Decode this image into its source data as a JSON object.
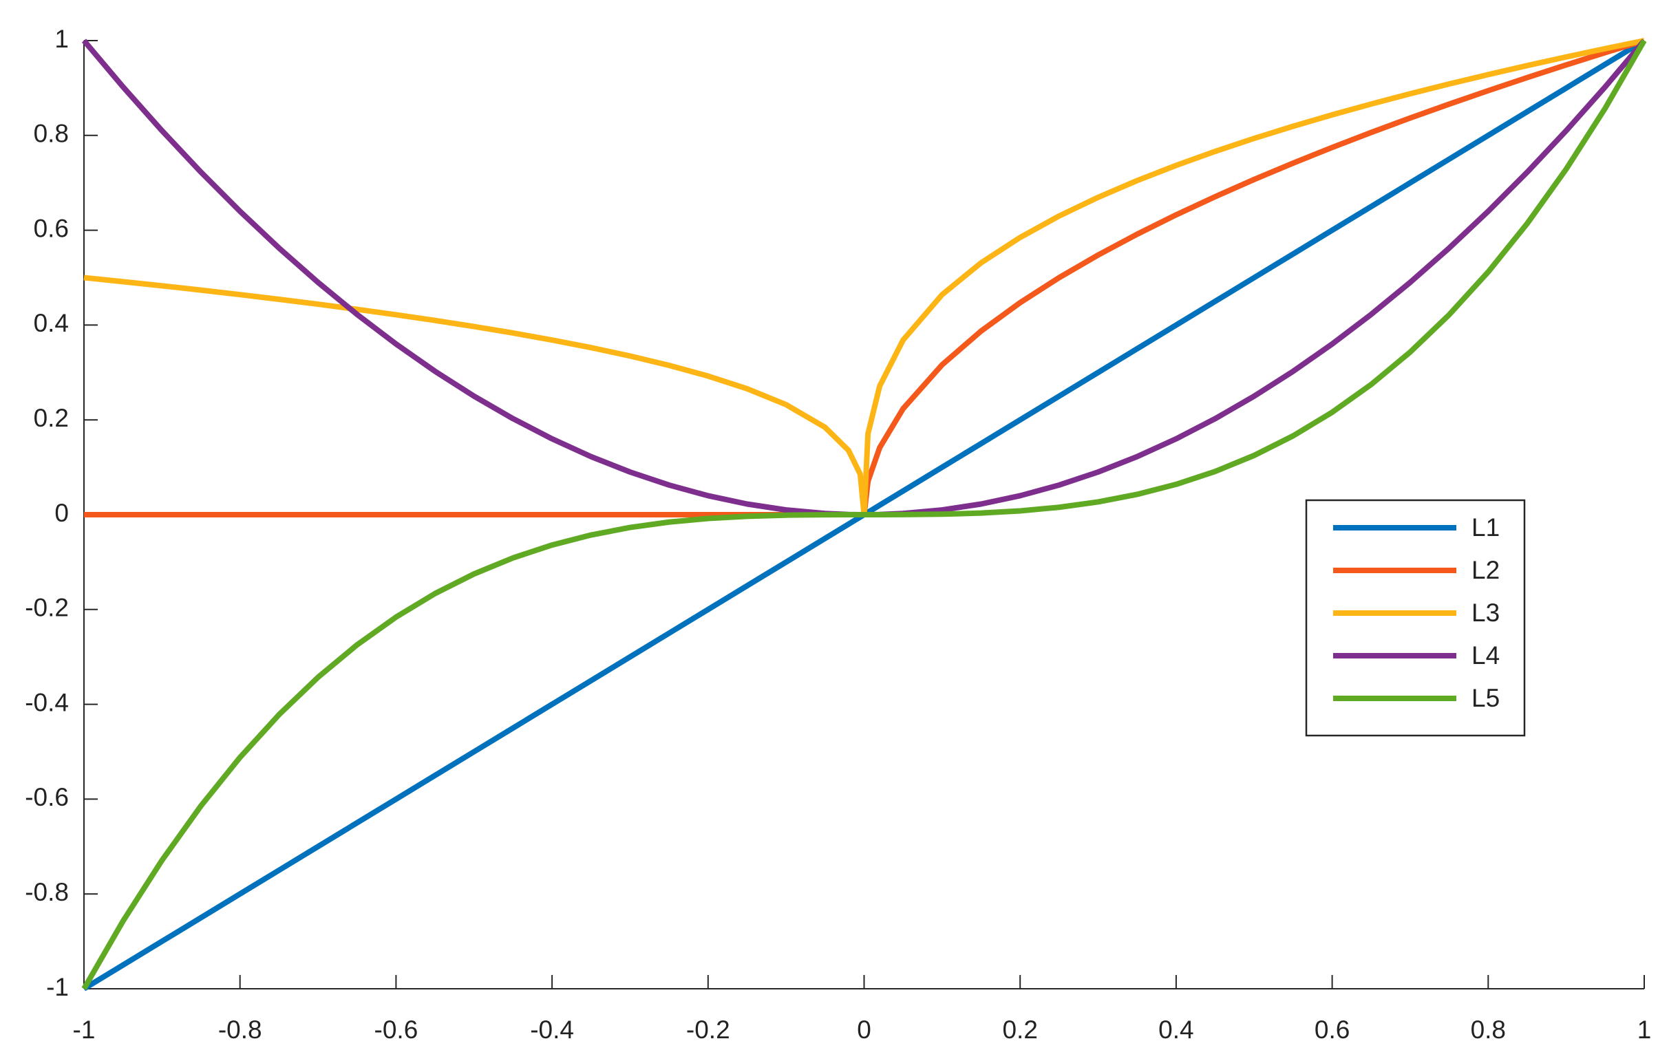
{
  "chart_data": {
    "type": "line",
    "x": [
      -1,
      -0.95,
      -0.9,
      -0.85,
      -0.8,
      -0.75,
      -0.7,
      -0.65,
      -0.6,
      -0.55,
      -0.5,
      -0.45,
      -0.4,
      -0.35,
      -0.3,
      -0.25,
      -0.2,
      -0.15,
      -0.1,
      -0.05,
      -0.02,
      -0.005,
      0,
      0.005,
      0.02,
      0.05,
      0.1,
      0.15,
      0.2,
      0.25,
      0.3,
      0.35,
      0.4,
      0.45,
      0.5,
      0.55,
      0.6,
      0.65,
      0.7,
      0.75,
      0.8,
      0.85,
      0.9,
      0.95,
      1
    ],
    "series": [
      {
        "name": "L1",
        "color": "#0072BD",
        "values": [
          -1,
          -0.95,
          -0.9,
          -0.85,
          -0.8,
          -0.75,
          -0.7,
          -0.65,
          -0.6,
          -0.55,
          -0.5,
          -0.45,
          -0.4,
          -0.35,
          -0.3,
          -0.25,
          -0.2,
          -0.15,
          -0.1,
          -0.05,
          -0.02,
          -0.005,
          0,
          0.005,
          0.02,
          0.05,
          0.1,
          0.15,
          0.2,
          0.25,
          0.3,
          0.35,
          0.4,
          0.45,
          0.5,
          0.55,
          0.6,
          0.65,
          0.7,
          0.75,
          0.8,
          0.85,
          0.9,
          0.95,
          1
        ]
      },
      {
        "name": "L2",
        "color": "#F4581B",
        "values": [
          0,
          0,
          0,
          0,
          0,
          0,
          0,
          0,
          0,
          0,
          0,
          0,
          0,
          0,
          0,
          0,
          0,
          0,
          0,
          0,
          0,
          0,
          0,
          0.0707,
          0.1414,
          0.2236,
          0.3162,
          0.3873,
          0.4472,
          0.5,
          0.5477,
          0.5916,
          0.6325,
          0.6708,
          0.7071,
          0.7416,
          0.7746,
          0.8062,
          0.8367,
          0.866,
          0.8944,
          0.922,
          0.9487,
          0.9747,
          1
        ]
      },
      {
        "name": "L3",
        "color": "#FDB515",
        "values": [
          0.5,
          0.4915,
          0.4828,
          0.4737,
          0.4642,
          0.4543,
          0.444,
          0.4331,
          0.4217,
          0.4097,
          0.3969,
          0.3832,
          0.3684,
          0.3524,
          0.3347,
          0.315,
          0.2924,
          0.2657,
          0.2321,
          0.1842,
          0.1357,
          0.0855,
          0,
          0.171,
          0.2714,
          0.3684,
          0.4642,
          0.5313,
          0.5848,
          0.63,
          0.6694,
          0.7047,
          0.7368,
          0.7663,
          0.7937,
          0.8193,
          0.8434,
          0.8662,
          0.8879,
          0.9086,
          0.9283,
          0.9473,
          0.9655,
          0.983,
          1
        ]
      },
      {
        "name": "L4",
        "color": "#7E2F8E",
        "values": [
          1,
          0.9025,
          0.81,
          0.7225,
          0.64,
          0.5625,
          0.49,
          0.4225,
          0.36,
          0.3025,
          0.25,
          0.2025,
          0.16,
          0.1225,
          0.09,
          0.0625,
          0.04,
          0.0225,
          0.01,
          0.0025,
          0.0004,
          2.5e-05,
          0,
          2.5e-05,
          0.0004,
          0.0025,
          0.01,
          0.0225,
          0.04,
          0.0625,
          0.09,
          0.1225,
          0.16,
          0.2025,
          0.25,
          0.3025,
          0.36,
          0.4225,
          0.49,
          0.5625,
          0.64,
          0.7225,
          0.81,
          0.9025,
          1
        ]
      },
      {
        "name": "L5",
        "color": "#5FAA22",
        "values": [
          -1,
          -0.857375,
          -0.729,
          -0.614125,
          -0.512,
          -0.421875,
          -0.343,
          -0.274625,
          -0.216,
          -0.166375,
          -0.125,
          -0.091125,
          -0.064,
          -0.042875,
          -0.027,
          -0.015625,
          -0.008,
          -0.003375,
          -0.001,
          -0.000125,
          -8e-06,
          0,
          0,
          0,
          8e-06,
          0.000125,
          0.001,
          0.003375,
          0.008,
          0.015625,
          0.027,
          0.042875,
          0.064,
          0.091125,
          0.125,
          0.166375,
          0.216,
          0.274625,
          0.343,
          0.421875,
          0.512,
          0.614125,
          0.729,
          0.857375,
          1
        ]
      }
    ],
    "xlim": [
      -1,
      1
    ],
    "ylim": [
      -1,
      1
    ],
    "xticks": [
      -1,
      -0.8,
      -0.6,
      -0.4,
      -0.2,
      0,
      0.2,
      0.4,
      0.6,
      0.8,
      1
    ],
    "yticks": [
      -1,
      -0.8,
      -0.6,
      -0.4,
      -0.2,
      0,
      0.2,
      0.4,
      0.6,
      0.8,
      1
    ],
    "grid": false,
    "legend": "right"
  }
}
